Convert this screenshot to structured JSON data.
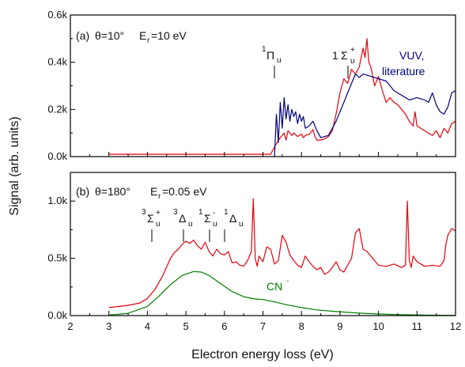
{
  "chart_data": [
    {
      "id": "a",
      "type": "line",
      "panel_label": "(a)",
      "condition": {
        "theta": "θ=10°",
        "energy_symbol": "E",
        "energy_sub": "r",
        "energy_value": "=10 eV"
      },
      "xlim": [
        2,
        12
      ],
      "ylim": [
        0,
        600
      ],
      "y_tick_values": [
        0,
        200,
        400,
        600
      ],
      "y_tick_labels": [
        "0.0k",
        "0.2k",
        "0.4k",
        "0.6k"
      ],
      "x_tick_values": [
        2,
        3,
        4,
        5,
        6,
        7,
        8,
        9,
        10,
        11,
        12
      ],
      "series": [
        {
          "color": "#e8000b",
          "x": [
            3.0,
            7.2,
            7.35,
            7.45,
            7.55,
            7.6,
            7.65,
            7.7,
            7.75,
            7.8,
            7.9,
            8.0,
            8.05,
            8.1,
            8.2,
            8.3,
            8.35,
            8.4,
            8.5,
            8.6,
            8.7,
            8.8,
            8.9,
            9.0,
            9.1,
            9.2,
            9.3,
            9.4,
            9.5,
            9.6,
            9.65,
            9.7,
            9.75,
            9.8,
            9.9,
            10.0,
            10.1,
            10.2,
            10.3,
            10.4,
            10.5,
            10.6,
            10.7,
            10.8,
            10.9,
            10.95,
            11.0,
            11.1,
            11.2,
            11.3,
            11.4,
            11.5,
            11.6,
            11.7,
            11.8,
            11.9,
            12.0
          ],
          "y": [
            10,
            10,
            55,
            80,
            100,
            70,
            110,
            100,
            90,
            100,
            85,
            95,
            80,
            90,
            95,
            115,
            85,
            70,
            70,
            75,
            85,
            110,
            180,
            270,
            330,
            310,
            370,
            350,
            380,
            460,
            420,
            500,
            400,
            380,
            300,
            340,
            280,
            230,
            250,
            230,
            220,
            200,
            180,
            150,
            130,
            190,
            130,
            120,
            110,
            100,
            90,
            110,
            80,
            120,
            100,
            140,
            150
          ]
        },
        {
          "name": "VUV, literature",
          "color": "#00007f",
          "x": [
            7.3,
            7.35,
            7.4,
            7.45,
            7.5,
            7.55,
            7.6,
            7.65,
            7.7,
            7.75,
            7.8,
            7.85,
            7.9,
            7.95,
            8.0,
            8.05,
            8.1,
            8.2,
            8.3,
            8.4,
            8.5,
            8.7,
            8.9,
            9.1,
            9.3,
            9.4,
            9.5,
            9.6,
            9.7,
            9.8,
            10.0,
            10.2,
            10.4,
            10.6,
            10.8,
            11.0,
            11.2,
            11.3,
            11.4,
            11.5,
            11.6,
            11.7,
            11.8,
            11.9,
            12.0
          ],
          "y": [
            0,
            180,
            60,
            230,
            120,
            250,
            160,
            220,
            150,
            200,
            170,
            190,
            140,
            180,
            150,
            170,
            120,
            130,
            150,
            110,
            80,
            90,
            150,
            230,
            310,
            350,
            335,
            350,
            345,
            340,
            330,
            320,
            280,
            260,
            240,
            250,
            240,
            230,
            270,
            220,
            190,
            180,
            210,
            270,
            280
          ]
        }
      ],
      "annotations": [
        {
          "label": "1Πu",
          "x": 7.65
        },
        {
          "label": "1Σu+",
          "x": 9.3
        }
      ],
      "legend_label_lines": [
        "VUV,",
        "literature"
      ]
    },
    {
      "id": "b",
      "type": "line",
      "panel_label": "(b)",
      "condition": {
        "theta": "θ=180°",
        "energy_symbol": "E",
        "energy_sub": "r",
        "energy_value": "=0.05 eV"
      },
      "xlim": [
        2,
        12
      ],
      "ylim": [
        0,
        1250
      ],
      "y_tick_values": [
        0,
        500,
        1000
      ],
      "y_tick_labels": [
        "0.0k",
        "0.5k",
        "1.0k"
      ],
      "x_tick_values": [
        2,
        3,
        4,
        5,
        6,
        7,
        8,
        9,
        10,
        11,
        12
      ],
      "x_tick_labels": [
        "2",
        "3",
        "4",
        "5",
        "6",
        "7",
        "8",
        "9",
        "10",
        "11",
        "12"
      ],
      "xlabel": "Electron energy loss (eV)",
      "series": [
        {
          "color": "#e8000b",
          "x": [
            3.0,
            3.5,
            3.8,
            4.0,
            4.2,
            4.4,
            4.6,
            4.7,
            4.8,
            4.9,
            5.0,
            5.1,
            5.2,
            5.3,
            5.4,
            5.5,
            5.6,
            5.7,
            5.8,
            5.9,
            6.0,
            6.1,
            6.2,
            6.3,
            6.4,
            6.5,
            6.6,
            6.7,
            6.75,
            6.8,
            6.85,
            6.9,
            7.0,
            7.1,
            7.2,
            7.3,
            7.4,
            7.5,
            7.6,
            7.7,
            7.8,
            7.9,
            8.0,
            8.1,
            8.2,
            8.3,
            8.4,
            8.5,
            8.6,
            8.7,
            8.8,
            8.9,
            9.0,
            9.1,
            9.2,
            9.3,
            9.4,
            9.5,
            9.6,
            9.7,
            9.8,
            9.9,
            10.0,
            10.2,
            10.4,
            10.6,
            10.7,
            10.75,
            10.8,
            10.85,
            10.9,
            11.0,
            11.2,
            11.4,
            11.6,
            11.7,
            11.75,
            11.8,
            11.9,
            12.0
          ],
          "y": [
            70,
            90,
            110,
            150,
            230,
            350,
            500,
            550,
            580,
            620,
            650,
            630,
            660,
            610,
            580,
            640,
            560,
            520,
            580,
            540,
            530,
            560,
            460,
            470,
            440,
            430,
            480,
            560,
            1020,
            500,
            430,
            520,
            470,
            600,
            580,
            450,
            480,
            700,
            640,
            530,
            480,
            440,
            420,
            520,
            470,
            430,
            400,
            420,
            360,
            380,
            420,
            470,
            400,
            380,
            440,
            500,
            720,
            760,
            580,
            560,
            520,
            480,
            440,
            430,
            450,
            420,
            440,
            1000,
            480,
            420,
            520,
            470,
            430,
            440,
            430,
            480,
            620,
            700,
            760,
            740
          ]
        },
        {
          "name": "CN-",
          "color": "#008000",
          "x": [
            3.0,
            3.5,
            4.0,
            4.3,
            4.6,
            4.9,
            5.2,
            5.4,
            5.6,
            5.9,
            6.2,
            6.5,
            6.8,
            7.0,
            7.3,
            7.6,
            8.0,
            8.4,
            8.8,
            9.2,
            9.6,
            10.0,
            10.4,
            10.8,
            11.2,
            11.6,
            12.0
          ],
          "y": [
            5,
            20,
            80,
            170,
            270,
            350,
            385,
            380,
            350,
            280,
            210,
            165,
            145,
            140,
            120,
            95,
            70,
            50,
            38,
            28,
            20,
            14,
            10,
            7,
            5,
            3,
            2
          ]
        }
      ],
      "annotations": [
        {
          "label": "3Σu+",
          "x": 4.15
        },
        {
          "label": "3Δu",
          "x": 4.95
        },
        {
          "label": "1Σu-",
          "x": 5.7
        },
        {
          "label": "1Δu",
          "x": 6.0
        }
      ],
      "legend_label": "CN"
    }
  ],
  "shared": {
    "ylabel": "Signal (arb. units)"
  }
}
